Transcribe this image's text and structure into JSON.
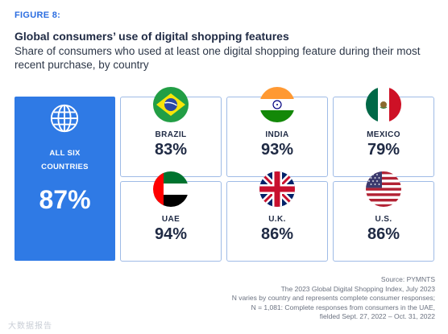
{
  "figure_label": "FIGURE 8:",
  "chart_data": {
    "type": "table",
    "title": "Global consumers’ use of digital shopping features",
    "subtitle": "Share of consumers who used at least one digital shopping feature during their most recent purchase, by country",
    "summary": {
      "label_line1": "ALL SIX",
      "label_line2": "COUNTRIES",
      "value": 87,
      "display": "87%",
      "icon": "globe-icon"
    },
    "categories": [
      "BRAZIL",
      "INDIA",
      "MEXICO",
      "UAE",
      "U.K.",
      "U.S."
    ],
    "values": [
      83,
      93,
      79,
      94,
      86,
      86
    ],
    "displays": [
      "83%",
      "93%",
      "79%",
      "94%",
      "86%",
      "86%"
    ],
    "unit": "%"
  },
  "source": [
    "Source: PYMNTS",
    "The 2023 Global Digital Shopping Index, July 2023",
    "N varies by country and represents complete consumer responses;",
    "N = 1,081: Complete responses from consumers in the UAE,",
    "fielded Sept. 27, 2022 – Oct. 31, 2022"
  ],
  "watermark": "大数据报告",
  "colors": {
    "accent": "#2f7ae5",
    "figure_label": "#2b6de0",
    "text": "#1f2a44",
    "card_border": "#9fbbe6"
  }
}
